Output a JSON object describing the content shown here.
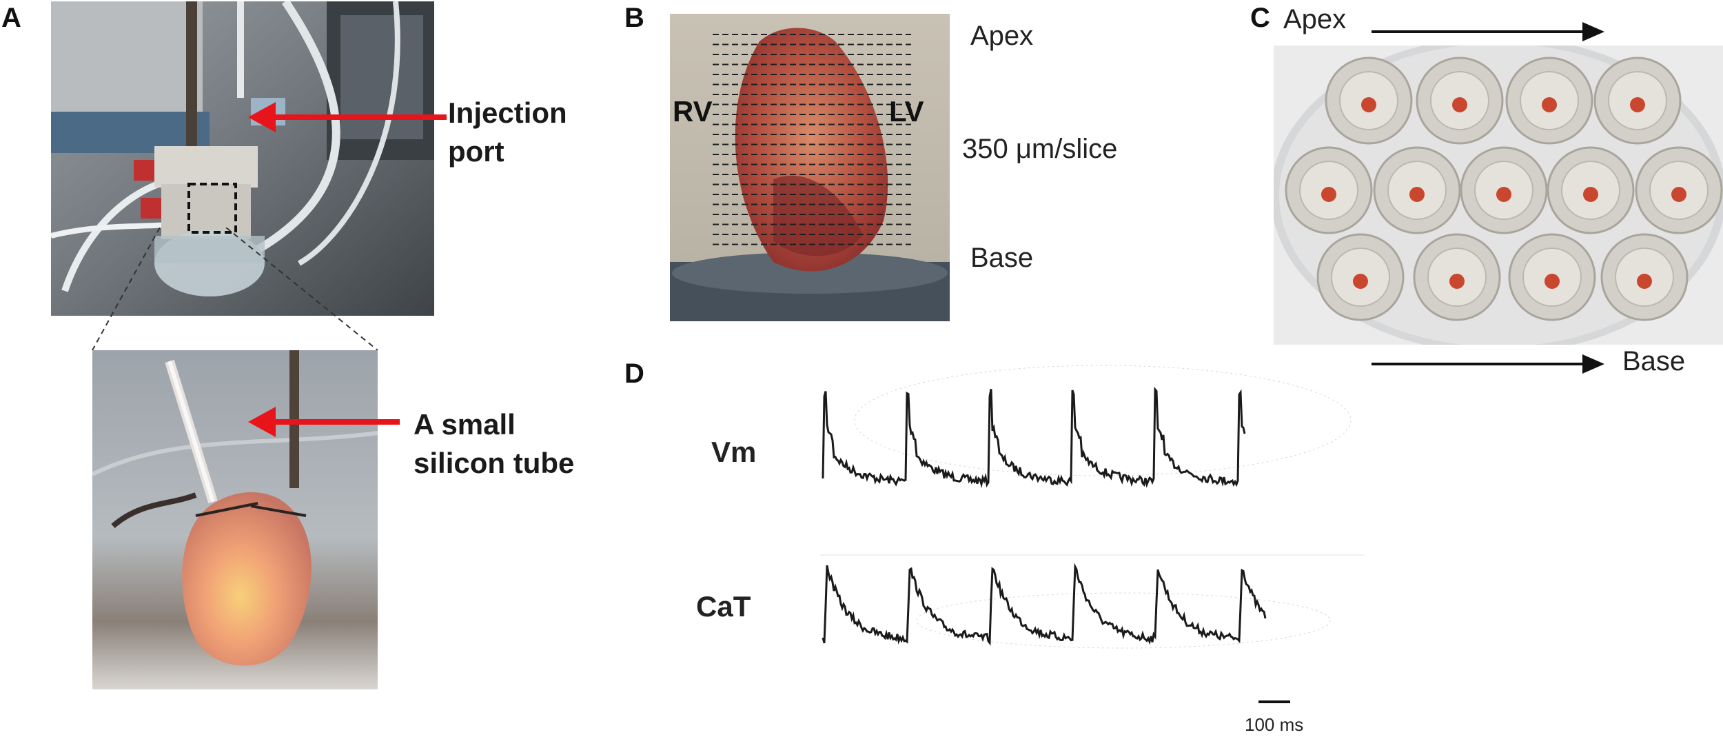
{
  "panels": {
    "a": {
      "letter": "A",
      "annotation_top": [
        "Injection",
        "port"
      ],
      "annotation_bottom": [
        "A small",
        "silicon tube"
      ]
    },
    "b": {
      "letter": "B",
      "apex": "Apex",
      "base": "Base",
      "rv": "RV",
      "lv": "LV",
      "slice_thickness": "350 μm/slice"
    },
    "c": {
      "letter": "C",
      "apex": "Apex",
      "base": "Base"
    },
    "d": {
      "letter": "D",
      "vm_label": "Vm",
      "cat_label": "CaT",
      "scale_bar": "100 ms"
    }
  },
  "colors": {
    "arrow_red": "#e8141b",
    "trace": "#1a1a1a"
  }
}
